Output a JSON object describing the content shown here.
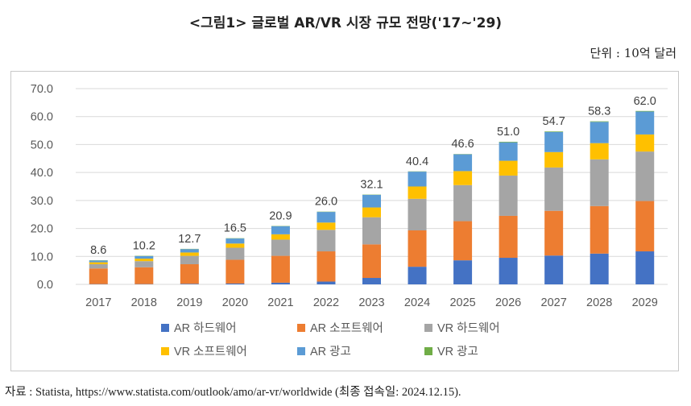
{
  "header": {
    "title": "<그림1> 글로벌 AR/VR 시장 규모 전망('17~'29)",
    "unit": "단위 : 10억 달러"
  },
  "footer": {
    "source": "자료 : Statista, https://www.statista.com/outlook/amo/ar-vr/worldwide (최종 접속일: 2024.12.15)."
  },
  "chart_data": {
    "type": "bar",
    "stacked": true,
    "categories": [
      "2017",
      "2018",
      "2019",
      "2020",
      "2021",
      "2022",
      "2023",
      "2024",
      "2025",
      "2026",
      "2027",
      "2028",
      "2029"
    ],
    "ylim": [
      0,
      70
    ],
    "yticks": [
      "0.0",
      "10.0",
      "20.0",
      "30.0",
      "40.0",
      "50.0",
      "60.0",
      "70.0"
    ],
    "grid": true,
    "legend_position": "bottom",
    "totals": [
      "8.6",
      "10.2",
      "12.7",
      "16.5",
      "20.9",
      "26.0",
      "32.1",
      "40.4",
      "46.6",
      "51.0",
      "54.7",
      "58.3",
      "62.0"
    ],
    "series": [
      {
        "name": "AR 하드웨어",
        "color": "#4472C4",
        "values": [
          0.1,
          0.1,
          0.2,
          0.3,
          0.6,
          1.0,
          2.3,
          6.3,
          8.6,
          9.5,
          10.3,
          11.0,
          11.8
        ]
      },
      {
        "name": "AR 소프트웨어",
        "color": "#ED7D31",
        "values": [
          5.6,
          6.0,
          7.0,
          8.5,
          9.6,
          10.8,
          12.0,
          13.0,
          14.0,
          15.0,
          16.0,
          17.0,
          18.0
        ]
      },
      {
        "name": "VR 하드웨어",
        "color": "#A5A5A5",
        "values": [
          1.5,
          2.2,
          3.0,
          4.3,
          5.8,
          7.7,
          9.7,
          11.3,
          12.9,
          14.4,
          15.5,
          16.7,
          17.7
        ]
      },
      {
        "name": "VR 소프트웨어",
        "color": "#FFC000",
        "values": [
          0.7,
          0.9,
          1.2,
          1.5,
          1.9,
          2.6,
          3.5,
          4.4,
          5.0,
          5.3,
          5.5,
          5.8,
          6.1
        ]
      },
      {
        "name": "AR 광고",
        "color": "#5B9BD5",
        "values": [
          0.6,
          0.9,
          1.2,
          1.8,
          2.9,
          3.8,
          4.5,
          5.3,
          6.0,
          6.6,
          7.2,
          7.6,
          8.2
        ]
      },
      {
        "name": "VR 광고",
        "color": "#70AD47",
        "values": [
          0.1,
          0.1,
          0.1,
          0.1,
          0.1,
          0.1,
          0.1,
          0.1,
          0.1,
          0.2,
          0.2,
          0.2,
          0.2
        ]
      }
    ]
  }
}
